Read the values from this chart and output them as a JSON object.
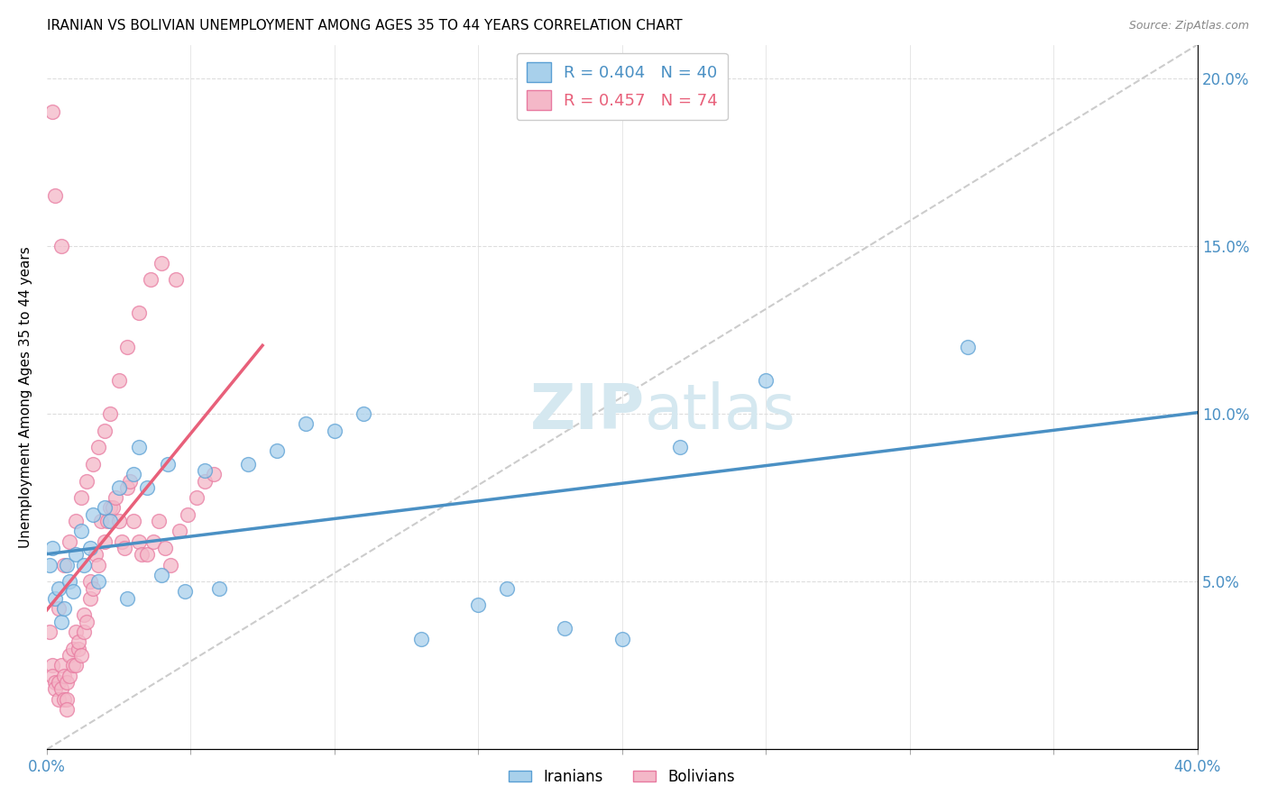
{
  "title": "IRANIAN VS BOLIVIAN UNEMPLOYMENT AMONG AGES 35 TO 44 YEARS CORRELATION CHART",
  "source": "Source: ZipAtlas.com",
  "ylabel": "Unemployment Among Ages 35 to 44 years",
  "xlim": [
    0.0,
    0.4
  ],
  "ylim": [
    0.0,
    0.21
  ],
  "blue_R": 0.404,
  "blue_N": 40,
  "pink_R": 0.457,
  "pink_N": 74,
  "blue_color": "#a8d0eb",
  "pink_color": "#f4b8c8",
  "blue_edge_color": "#5a9fd4",
  "pink_edge_color": "#e87aa0",
  "blue_line_color": "#4a90c4",
  "pink_line_color": "#e8607a",
  "watermark_color": "#d5e8f0",
  "iranians_x": [
    0.001,
    0.002,
    0.003,
    0.004,
    0.005,
    0.006,
    0.007,
    0.008,
    0.009,
    0.01,
    0.012,
    0.013,
    0.015,
    0.016,
    0.018,
    0.02,
    0.022,
    0.025,
    0.028,
    0.03,
    0.032,
    0.035,
    0.04,
    0.042,
    0.048,
    0.055,
    0.06,
    0.07,
    0.08,
    0.09,
    0.1,
    0.11,
    0.13,
    0.15,
    0.16,
    0.18,
    0.2,
    0.22,
    0.25,
    0.32
  ],
  "iranians_y": [
    0.055,
    0.06,
    0.045,
    0.048,
    0.038,
    0.042,
    0.055,
    0.05,
    0.047,
    0.058,
    0.065,
    0.055,
    0.06,
    0.07,
    0.05,
    0.072,
    0.068,
    0.078,
    0.045,
    0.082,
    0.09,
    0.078,
    0.052,
    0.085,
    0.047,
    0.083,
    0.048,
    0.085,
    0.089,
    0.097,
    0.095,
    0.1,
    0.033,
    0.043,
    0.048,
    0.036,
    0.033,
    0.09,
    0.11,
    0.12
  ],
  "bolivians_x": [
    0.001,
    0.002,
    0.002,
    0.003,
    0.003,
    0.004,
    0.004,
    0.005,
    0.005,
    0.006,
    0.006,
    0.007,
    0.007,
    0.008,
    0.008,
    0.009,
    0.009,
    0.01,
    0.01,
    0.011,
    0.011,
    0.012,
    0.013,
    0.013,
    0.014,
    0.015,
    0.015,
    0.016,
    0.017,
    0.018,
    0.019,
    0.02,
    0.021,
    0.022,
    0.023,
    0.024,
    0.025,
    0.026,
    0.027,
    0.028,
    0.029,
    0.03,
    0.032,
    0.033,
    0.035,
    0.037,
    0.039,
    0.041,
    0.043,
    0.046,
    0.049,
    0.052,
    0.055,
    0.058,
    0.004,
    0.006,
    0.008,
    0.01,
    0.012,
    0.014,
    0.016,
    0.018,
    0.02,
    0.022,
    0.025,
    0.028,
    0.032,
    0.036,
    0.04,
    0.045,
    0.002,
    0.003,
    0.005,
    0.007
  ],
  "bolivians_y": [
    0.035,
    0.025,
    0.022,
    0.02,
    0.018,
    0.015,
    0.02,
    0.018,
    0.025,
    0.015,
    0.022,
    0.02,
    0.015,
    0.028,
    0.022,
    0.03,
    0.025,
    0.035,
    0.025,
    0.03,
    0.032,
    0.028,
    0.04,
    0.035,
    0.038,
    0.05,
    0.045,
    0.048,
    0.058,
    0.055,
    0.068,
    0.062,
    0.068,
    0.072,
    0.072,
    0.075,
    0.068,
    0.062,
    0.06,
    0.078,
    0.08,
    0.068,
    0.062,
    0.058,
    0.058,
    0.062,
    0.068,
    0.06,
    0.055,
    0.065,
    0.07,
    0.075,
    0.08,
    0.082,
    0.042,
    0.055,
    0.062,
    0.068,
    0.075,
    0.08,
    0.085,
    0.09,
    0.095,
    0.1,
    0.11,
    0.12,
    0.13,
    0.14,
    0.145,
    0.14,
    0.19,
    0.165,
    0.15,
    0.012
  ]
}
